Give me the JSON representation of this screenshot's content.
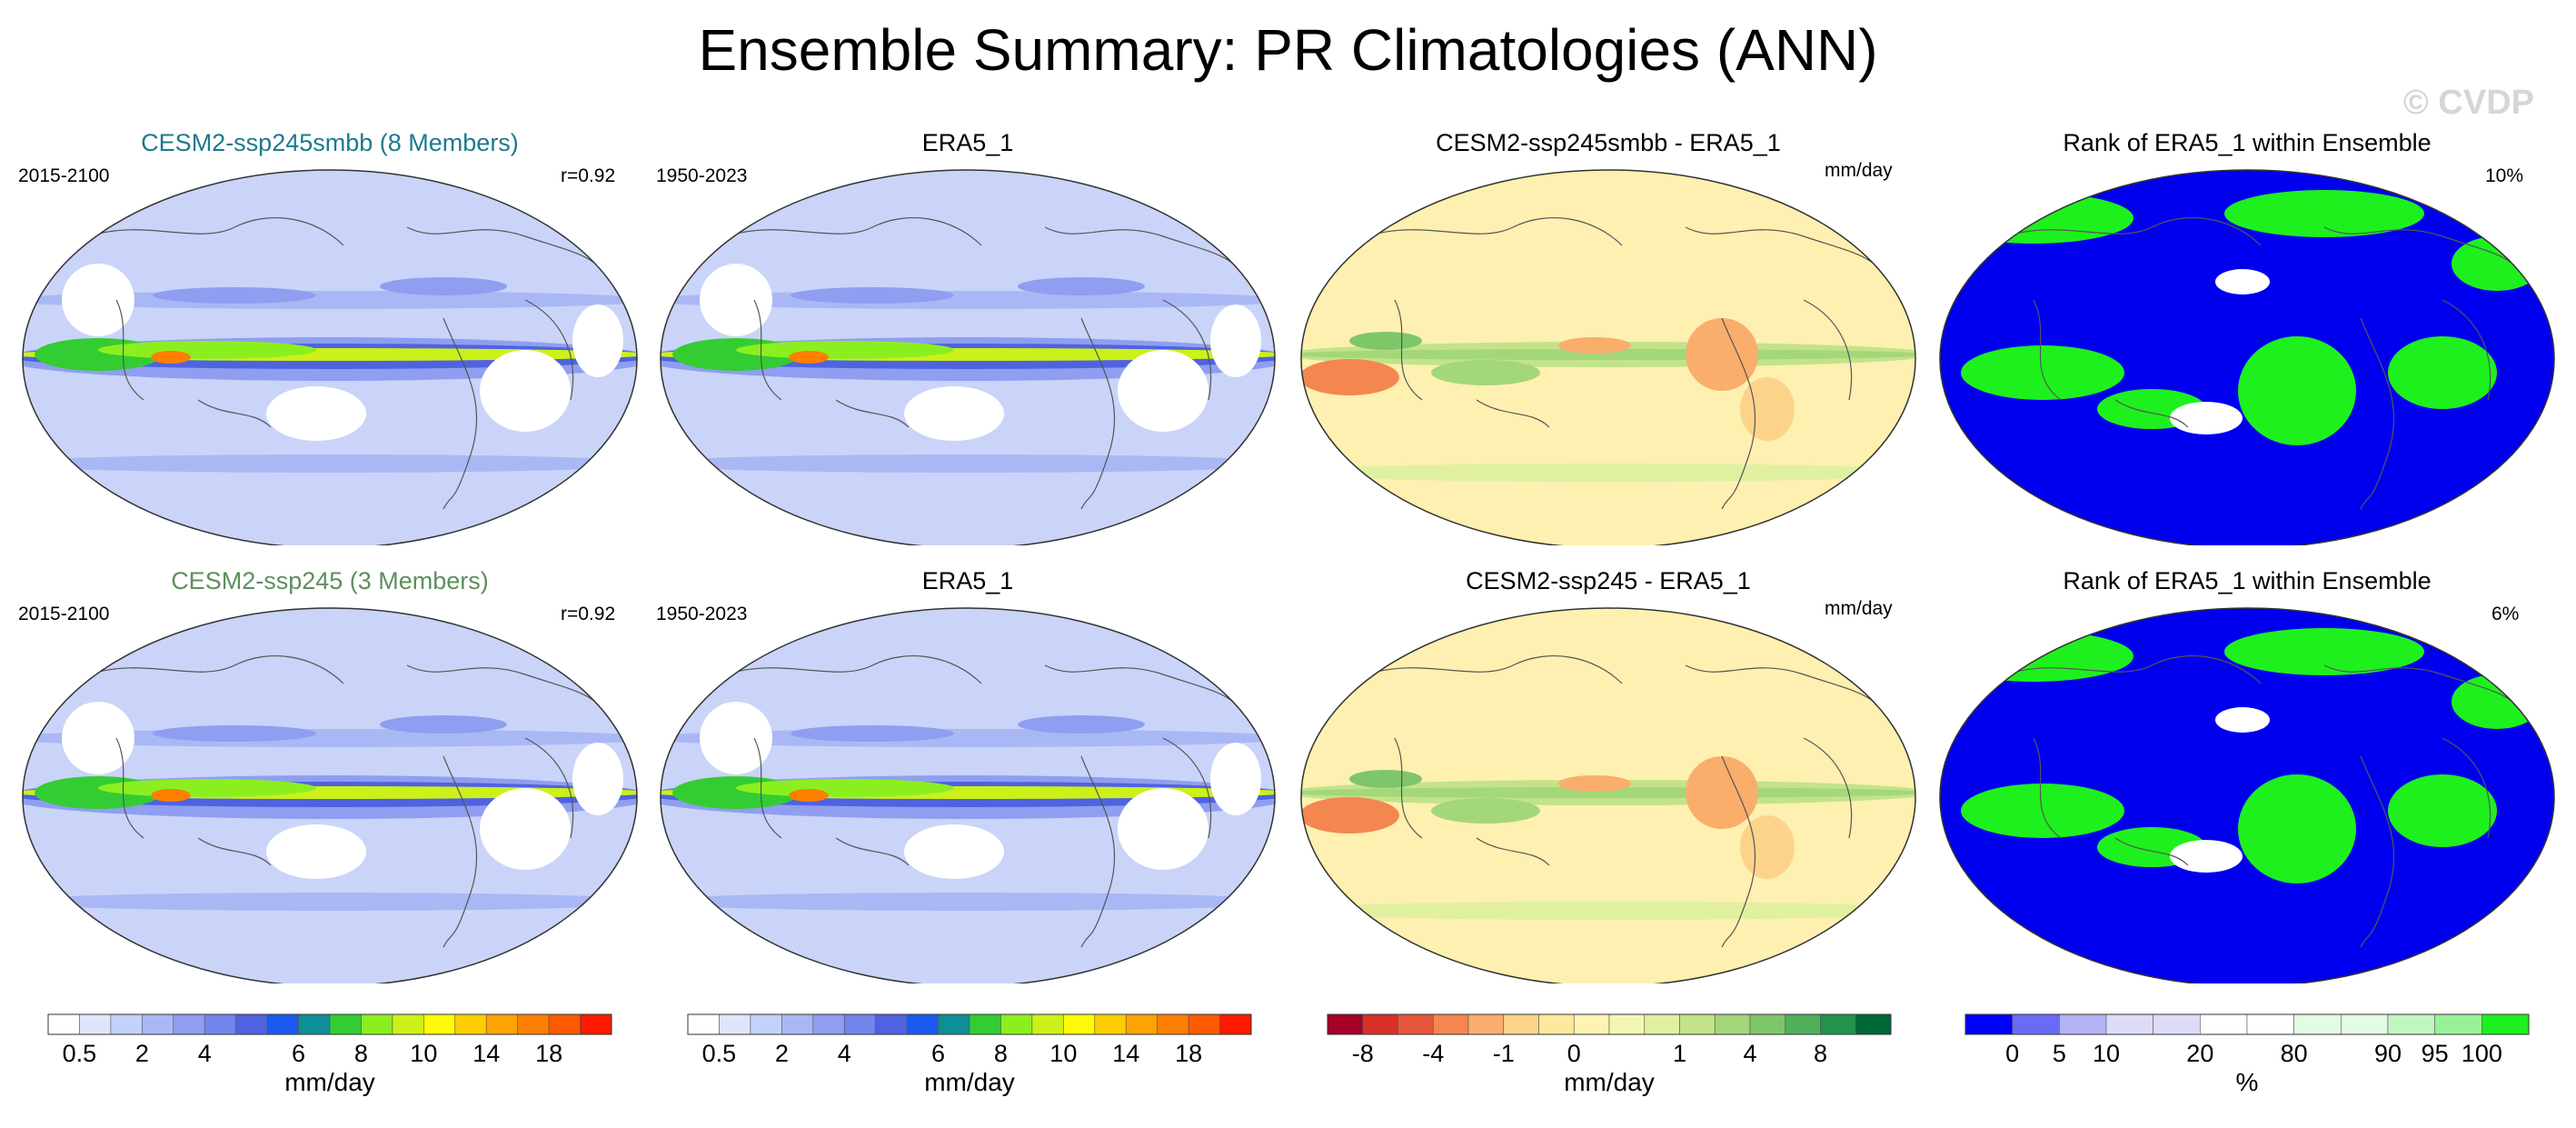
{
  "title": "Ensemble Summary: PR Climatologies (ANN)",
  "watermark": "© CVDP",
  "panels": [
    {
      "id": "r1c1",
      "title": "CESM2-ssp245smbb (8 Members)",
      "title_color": "#1b7a8e",
      "left_label": "2015-2100",
      "right_label": "r=0.92",
      "kind": "clim"
    },
    {
      "id": "r1c2",
      "title": "ERA5_1",
      "title_color": "#000000",
      "left_label": "1950-2023",
      "right_label": "",
      "kind": "clim"
    },
    {
      "id": "r1c3",
      "title": "CESM2-ssp245smbb - ERA5_1",
      "title_color": "#000000",
      "left_label": "",
      "right_label": "mm/day",
      "kind": "diff"
    },
    {
      "id": "r1c4",
      "title": "Rank of ERA5_1 within Ensemble",
      "title_color": "#000000",
      "left_label": "",
      "right_label": "10%",
      "kind": "rank"
    },
    {
      "id": "r2c1",
      "title": "CESM2-ssp245 (3 Members)",
      "title_color": "#5e8f5e",
      "left_label": "2015-2100",
      "right_label": "r=0.92",
      "kind": "clim"
    },
    {
      "id": "r2c2",
      "title": "ERA5_1",
      "title_color": "#000000",
      "left_label": "1950-2023",
      "right_label": "",
      "kind": "clim"
    },
    {
      "id": "r2c3",
      "title": "CESM2-ssp245 - ERA5_1",
      "title_color": "#000000",
      "left_label": "",
      "right_label": "mm/day",
      "kind": "diff"
    },
    {
      "id": "r2c4",
      "title": "Rank of ERA5_1 within Ensemble",
      "title_color": "#000000",
      "left_label": "",
      "right_label": "6%",
      "kind": "rank"
    }
  ],
  "chart_data": [
    {
      "type": "colorbar",
      "name": "precip-climatology",
      "colors": [
        "#ffffff",
        "#dfe6fb",
        "#c4d1f9",
        "#a9b8f5",
        "#8f9ef0",
        "#7185ea",
        "#4f63e0",
        "#1a5af0",
        "#0e8e96",
        "#33cc33",
        "#8bef1f",
        "#ccf01a",
        "#fffb00",
        "#ffcc00",
        "#ffa300",
        "#ff7f00",
        "#ff5a00",
        "#ff1a00"
      ],
      "tick_labels": [
        "0.5",
        "2",
        "4",
        "6",
        "8",
        "10",
        "14",
        "18"
      ],
      "tick_positions": [
        1,
        3,
        5,
        8,
        10,
        12,
        14,
        16
      ],
      "units": "mm/day"
    },
    {
      "type": "colorbar",
      "name": "precip-difference",
      "colors": [
        "#a50026",
        "#d73027",
        "#e6553a",
        "#f4864f",
        "#f9ae6c",
        "#fdd38b",
        "#fee89b",
        "#fff3b1",
        "#f4f7b3",
        "#dff0a1",
        "#c2e38a",
        "#a4d67a",
        "#7fc66a",
        "#4fb05a",
        "#22924c",
        "#006837"
      ],
      "tick_labels": [
        "-8",
        "-4",
        "-1",
        "0",
        "1",
        "4",
        "8"
      ],
      "tick_positions": [
        1,
        3,
        5,
        7,
        10,
        12,
        14
      ],
      "units": "mm/day"
    },
    {
      "type": "colorbar",
      "name": "rank-percent",
      "colors": [
        "#0000ff",
        "#6a6af7",
        "#b3b3f5",
        "#dcdcf8",
        "#dcdcf8",
        "#ffffff",
        "#ffffff",
        "#e2fbe2",
        "#e2fbe2",
        "#c2f7c2",
        "#98f198",
        "#1ef01e"
      ],
      "tick_labels": [
        "0",
        "5",
        "10",
        "20",
        "80",
        "90",
        "95",
        "100"
      ],
      "tick_positions": [
        1,
        2,
        3,
        5,
        7,
        9,
        10,
        11
      ],
      "units": "%"
    }
  ]
}
